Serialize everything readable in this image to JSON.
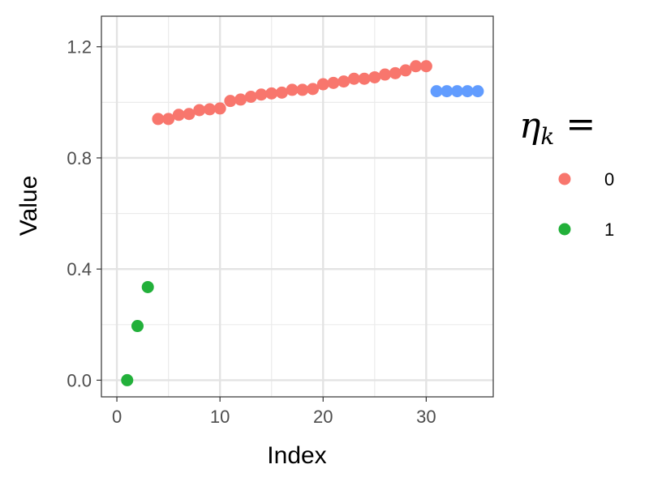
{
  "chart_data": {
    "type": "scatter",
    "title": "",
    "xlabel": "Index",
    "ylabel": "Value",
    "xlim": [
      -1.5,
      36.5
    ],
    "ylim": [
      -0.06,
      1.31
    ],
    "xticks": [
      0,
      10,
      20,
      30
    ],
    "xtick_labels": [
      "0",
      "10",
      "20",
      "30"
    ],
    "yticks": [
      0.0,
      0.4,
      0.8,
      1.2
    ],
    "ytick_labels": [
      "0.0",
      "0.4",
      "0.8",
      "1.2"
    ],
    "grid": true,
    "legend": {
      "title_symbol": "η",
      "title_subscript": "k",
      "title_suffix": "=",
      "placement": "right",
      "entries": [
        {
          "label": "0",
          "color": "#F8766D"
        },
        {
          "label": "1",
          "color": "#22B03A"
        }
      ]
    },
    "series": [
      {
        "name": "0",
        "color": "#F8766D",
        "x": [
          4,
          5,
          6,
          7,
          8,
          9,
          10,
          11,
          12,
          13,
          14,
          15,
          16,
          17,
          18,
          19,
          20,
          21,
          22,
          23,
          24,
          25,
          26,
          27,
          28,
          29,
          30
        ],
        "y": [
          0.94,
          0.94,
          0.955,
          0.958,
          0.972,
          0.975,
          0.978,
          1.005,
          1.01,
          1.02,
          1.028,
          1.032,
          1.035,
          1.045,
          1.045,
          1.048,
          1.065,
          1.07,
          1.075,
          1.085,
          1.085,
          1.09,
          1.1,
          1.105,
          1.115,
          1.13,
          1.13
        ]
      },
      {
        "name": "1",
        "color": "#22B03A",
        "x": [
          1,
          2,
          3
        ],
        "y": [
          0.0,
          0.195,
          0.335
        ]
      },
      {
        "color": "#619CFF",
        "x": [
          31,
          32,
          33,
          34,
          35
        ],
        "y": [
          1.04,
          1.04,
          1.04,
          1.04,
          1.04
        ]
      }
    ]
  }
}
